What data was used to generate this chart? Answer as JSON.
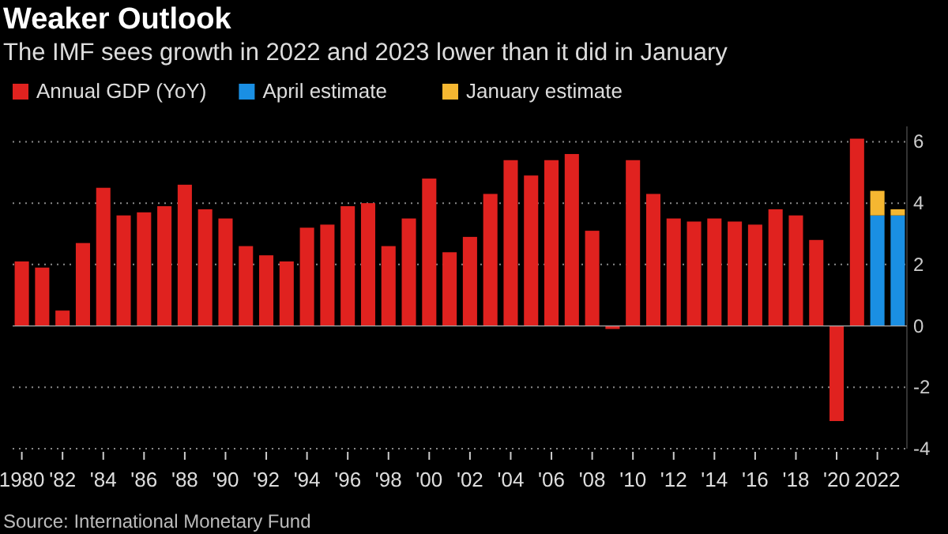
{
  "chart_data": {
    "type": "bar",
    "title": "Weaker Outlook",
    "subtitle": "The IMF sees growth in 2022 and 2023 lower than it did in January",
    "annotations": [
      "Source: International Monetary Fund"
    ],
    "categories": [
      "1980",
      null,
      "'82",
      null,
      "'84",
      null,
      "'86",
      null,
      "'88",
      null,
      "'90",
      null,
      "'92",
      null,
      "'94",
      null,
      "'96",
      null,
      "'98",
      null,
      "'00",
      null,
      "'02",
      null,
      "'04",
      null,
      "'06",
      null,
      "'08",
      null,
      "'10",
      null,
      "'12",
      null,
      "'14",
      null,
      "'16",
      null,
      "'18",
      null,
      "'20",
      null,
      "2022",
      null
    ],
    "stacked": true,
    "series": [
      {
        "name": "Annual GDP (YoY)",
        "color": "#e0221f",
        "values": [
          2.1,
          1.9,
          0.5,
          2.7,
          4.5,
          3.6,
          3.7,
          3.9,
          4.6,
          3.8,
          3.5,
          2.6,
          2.3,
          2.1,
          3.2,
          3.3,
          3.9,
          4.0,
          2.6,
          3.5,
          4.8,
          2.4,
          2.9,
          4.3,
          5.4,
          4.9,
          5.4,
          5.6,
          3.1,
          -0.1,
          5.4,
          4.3,
          3.5,
          3.4,
          3.5,
          3.4,
          3.3,
          3.8,
          3.6,
          2.8,
          -3.1,
          6.1,
          null,
          null
        ]
      },
      {
        "name": "April estimate",
        "color": "#1a8fe3",
        "values": [
          null,
          null,
          null,
          null,
          null,
          null,
          null,
          null,
          null,
          null,
          null,
          null,
          null,
          null,
          null,
          null,
          null,
          null,
          null,
          null,
          null,
          null,
          null,
          null,
          null,
          null,
          null,
          null,
          null,
          null,
          null,
          null,
          null,
          null,
          null,
          null,
          null,
          null,
          null,
          null,
          null,
          null,
          3.6,
          3.6
        ]
      },
      {
        "name": "January estimate",
        "color": "#f5b731",
        "values": [
          null,
          null,
          null,
          null,
          null,
          null,
          null,
          null,
          null,
          null,
          null,
          null,
          null,
          null,
          null,
          null,
          null,
          null,
          null,
          null,
          null,
          null,
          null,
          null,
          null,
          null,
          null,
          null,
          null,
          null,
          null,
          null,
          null,
          null,
          null,
          null,
          null,
          null,
          null,
          null,
          null,
          null,
          0.8,
          0.2
        ]
      }
    ],
    "ylim": [
      -4,
      6.5
    ],
    "yticks": [
      -4,
      -2,
      0,
      2,
      4,
      6
    ],
    "grid": "y",
    "legend": "top left"
  }
}
